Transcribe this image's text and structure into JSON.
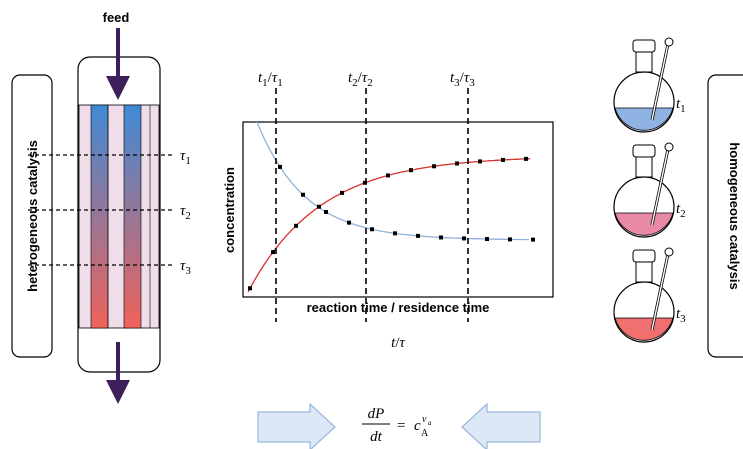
{
  "feed": "feed",
  "left_label": "heterogeneous catalysis",
  "right_label": "homogeneous catalysis",
  "reactor_labels": [
    {
      "base": "τ",
      "sub": "1"
    },
    {
      "base": "τ",
      "sub": "2"
    },
    {
      "base": "τ",
      "sub": "3"
    }
  ],
  "time_labels": [
    {
      "t": "t",
      "t_sub": "1",
      "slash": "/",
      "tau": "τ",
      "tau_sub": "1"
    },
    {
      "t": "t",
      "t_sub": "2",
      "slash": "/",
      "tau": "τ",
      "tau_sub": "2"
    },
    {
      "t": "t",
      "t_sub": "3",
      "slash": "/",
      "tau": "τ",
      "tau_sub": "3"
    }
  ],
  "plot": {
    "y_label": "concentration",
    "x_label": "reaction time / residence time"
  },
  "axis_symbol": {
    "t": "t",
    "slash": "/",
    "tau": "τ"
  },
  "flask_labels": [
    {
      "base": "t",
      "sub": "1"
    },
    {
      "base": "t",
      "sub": "2"
    },
    {
      "base": "t",
      "sub": "3"
    }
  ],
  "equation": {
    "numerator": "dP",
    "denominator": "dt",
    "equals": "=",
    "base": "c",
    "sub": "A",
    "sup": "ν",
    "sup_sub": "a"
  }
}
